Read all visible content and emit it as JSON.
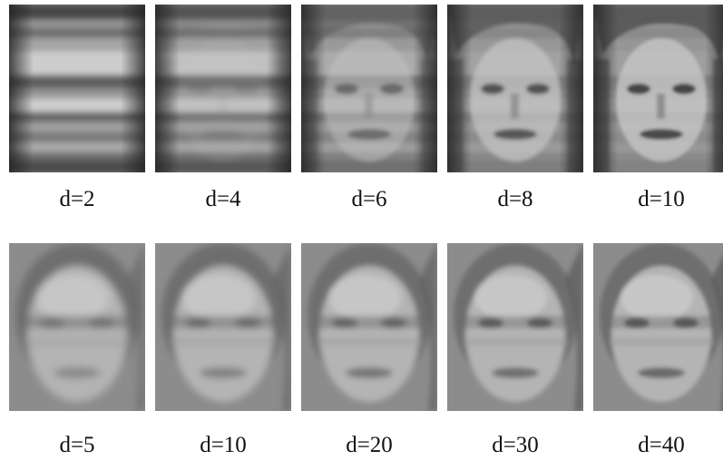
{
  "rows": [
    {
      "kind": "striped",
      "items": [
        {
          "caption": "d=2",
          "detail": 0.0
        },
        {
          "caption": "d=4",
          "detail": 0.15
        },
        {
          "caption": "d=6",
          "detail": 0.55
        },
        {
          "caption": "d=8",
          "detail": 0.8
        },
        {
          "caption": "d=10",
          "detail": 0.9
        }
      ]
    },
    {
      "kind": "face",
      "items": [
        {
          "caption": "d=5",
          "detail": 0.25
        },
        {
          "caption": "d=10",
          "detail": 0.4
        },
        {
          "caption": "d=20",
          "detail": 0.6
        },
        {
          "caption": "d=30",
          "detail": 0.75
        },
        {
          "caption": "d=40",
          "detail": 0.85
        }
      ]
    }
  ]
}
